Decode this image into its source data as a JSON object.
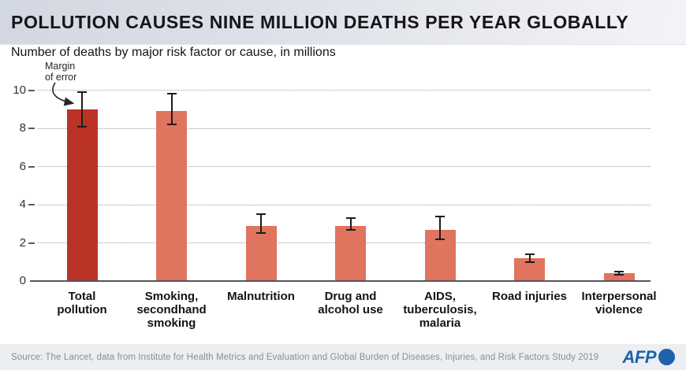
{
  "header": {
    "title": "POLLUTION CAUSES NINE MILLION DEATHS PER YEAR GLOBALLY"
  },
  "subtitle": "Number of deaths by major risk factor or cause, in millions",
  "annotation": {
    "line1": "Margin",
    "line2": "of error"
  },
  "chart_data": {
    "type": "bar",
    "title": "Number of deaths by major risk factor or cause, in millions",
    "categories": [
      "Total\npollution",
      "Smoking,\nsecondhand\nsmoking",
      "Malnutrition",
      "Drug and\nalcohol use",
      "AIDS,\ntuberculosis,\nmalaria",
      "Road injuries",
      "Interpersonal\nviolence"
    ],
    "values": [
      9.0,
      8.9,
      2.9,
      2.9,
      2.7,
      1.2,
      0.4
    ],
    "error_low": [
      8.1,
      8.2,
      2.5,
      2.7,
      2.2,
      1.0,
      0.35
    ],
    "error_high": [
      9.9,
      9.8,
      3.5,
      3.3,
      3.4,
      1.4,
      0.5
    ],
    "bar_colors": [
      "#bb3327",
      "#e0745e",
      "#e0745e",
      "#e0745e",
      "#e0745e",
      "#e0745e",
      "#e0745e"
    ],
    "xlabel": "",
    "ylabel": "",
    "ylim": [
      0,
      10
    ],
    "yticks": [
      0,
      2,
      4,
      6,
      8,
      10
    ],
    "grid": "horizontal-dotted",
    "legend": "none",
    "annotation": "Margin of error"
  },
  "footer": {
    "source": "Source: The Lancet, data from Institute for Health Metrics and Evaluation and Global Burden of Diseases, Injuries, and Risk Factors Study 2019",
    "brand": "AFP"
  }
}
